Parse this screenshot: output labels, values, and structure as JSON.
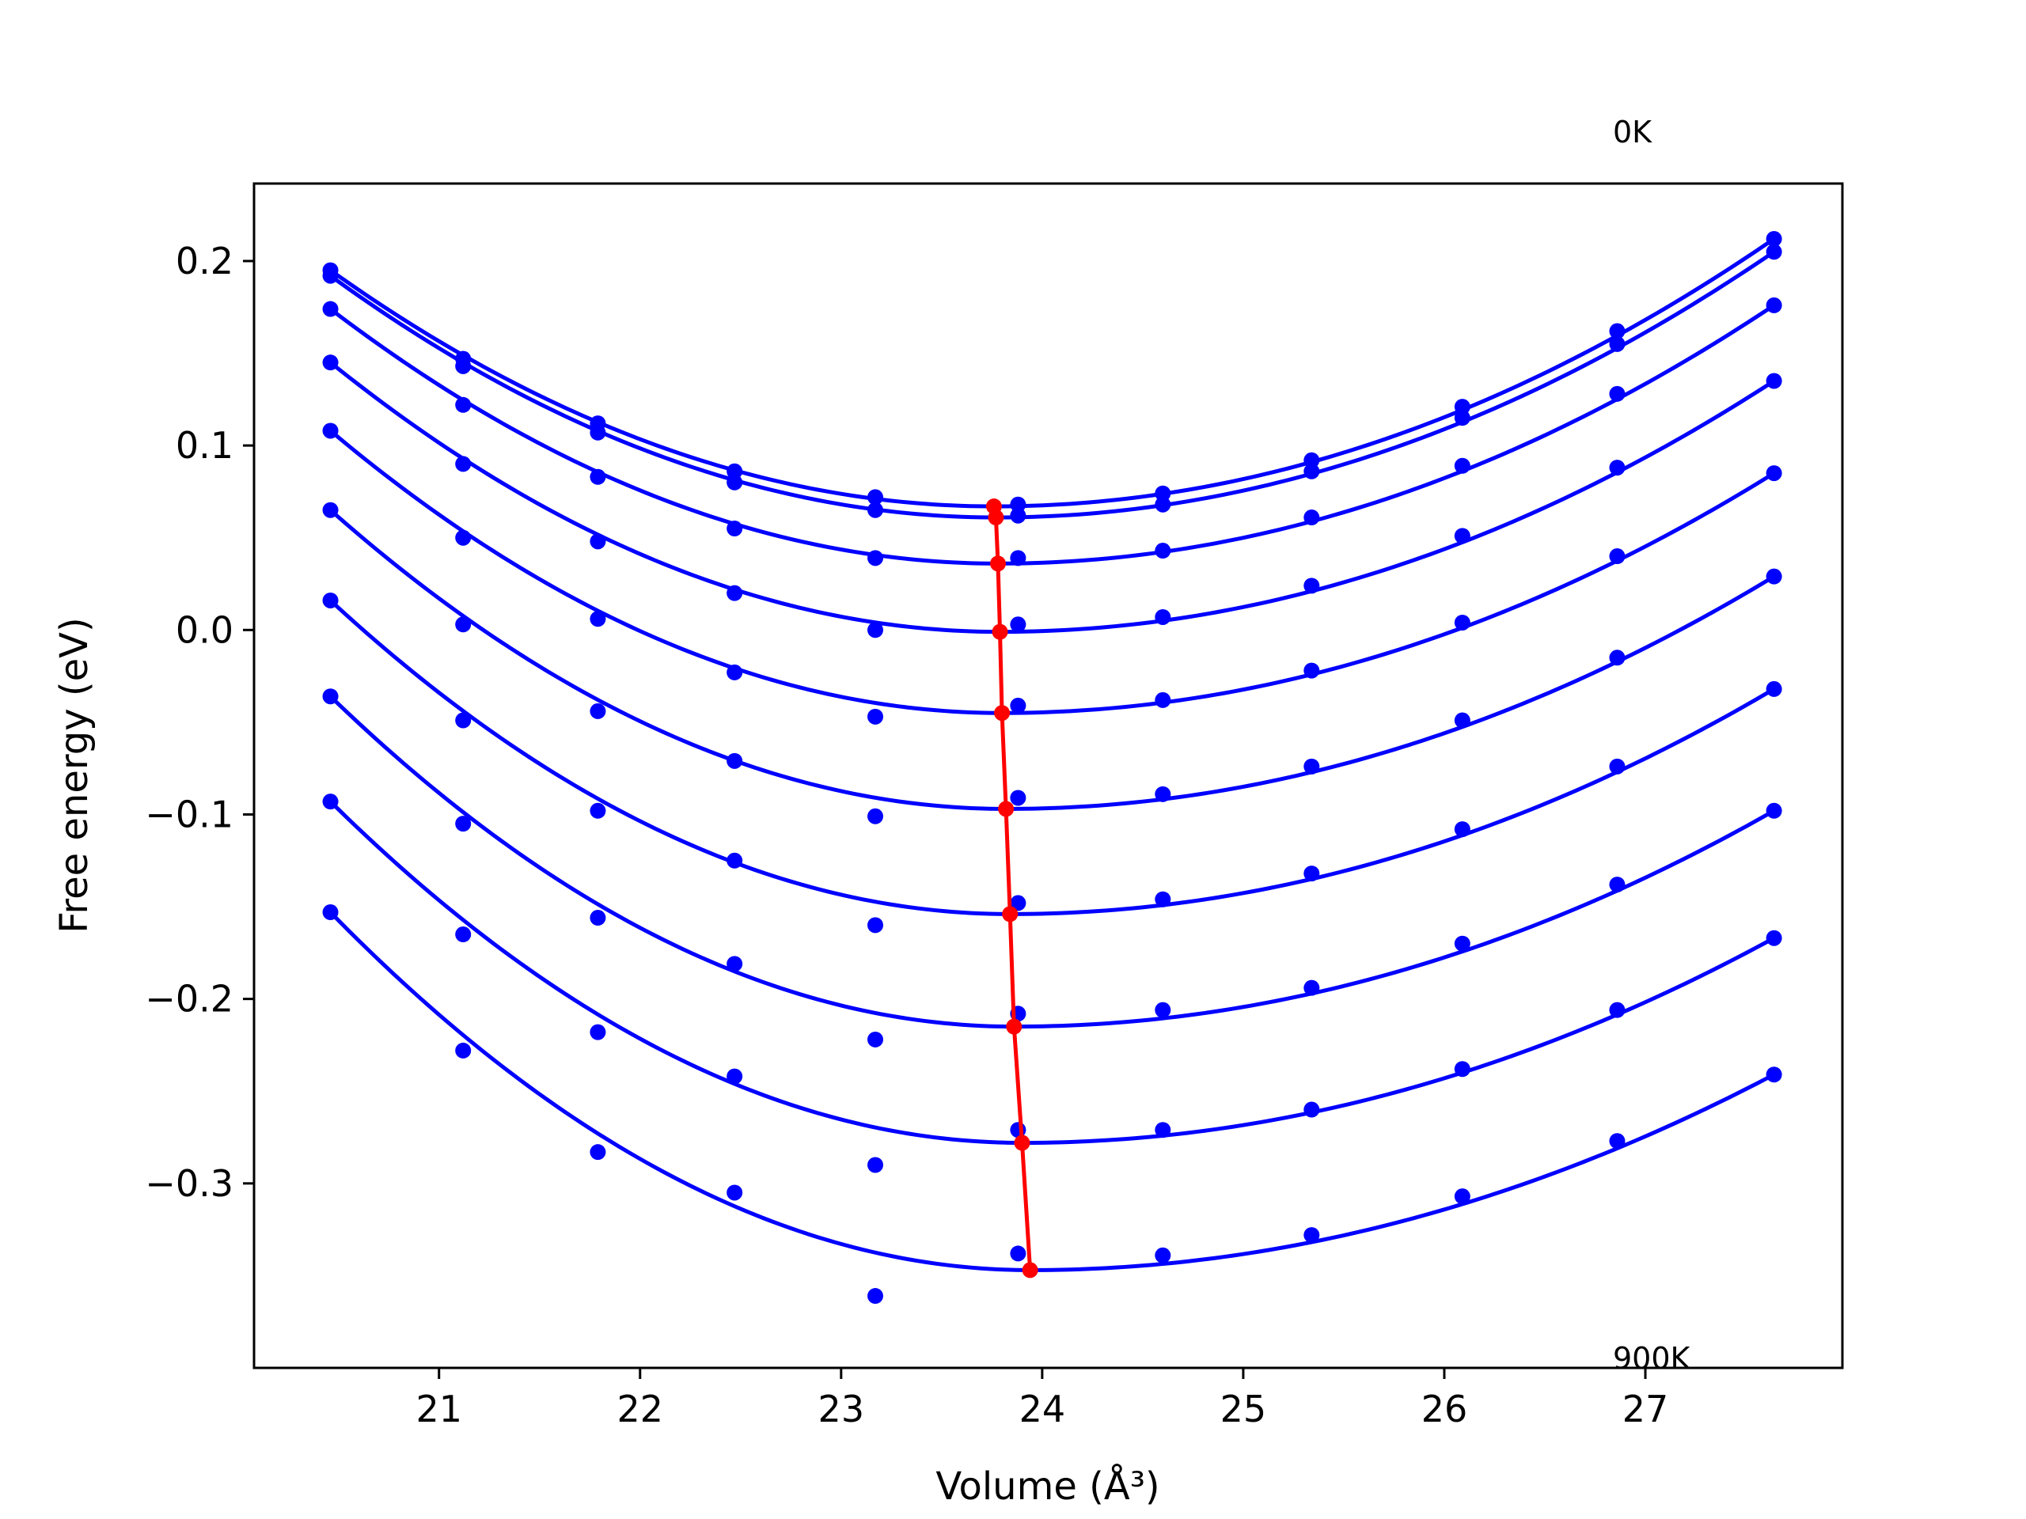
{
  "chart_data": {
    "type": "scatter",
    "xlabel": "Volume (Å³)",
    "ylabel": "Free energy (eV)",
    "xlim": [
      20.08,
      27.98
    ],
    "ylim": [
      -0.4,
      0.242
    ],
    "x_ticks": [
      21,
      22,
      23,
      24,
      25,
      26,
      27
    ],
    "x_tick_labels": [
      "21",
      "22",
      "23",
      "24",
      "25",
      "26",
      "27"
    ],
    "y_ticks": [
      0.2,
      0.1,
      0.0,
      -0.1,
      -0.2,
      -0.3
    ],
    "y_tick_labels": [
      "0.2",
      "0.1",
      "0.0",
      "−0.1",
      "−0.2",
      "−0.3"
    ],
    "grid": false,
    "legend": "none",
    "annotations": {
      "top": "0K",
      "bottom": "900K"
    },
    "colors": {
      "curves": "#0000ff",
      "minima": "#ff0000"
    },
    "volumes": [
      20.46,
      21.12,
      21.79,
      22.47,
      23.17,
      23.88,
      24.6,
      25.34,
      26.09,
      26.86,
      27.64
    ],
    "series": [
      {
        "values": [
          0.195,
          0.147,
          0.112,
          0.086,
          0.072,
          0.068,
          0.074,
          0.092,
          0.121,
          0.162,
          0.212
        ],
        "min_x": 23.76,
        "min_y": 0.067
      },
      {
        "values": [
          0.192,
          0.143,
          0.107,
          0.08,
          0.065,
          0.062,
          0.068,
          0.086,
          0.115,
          0.155,
          0.205
        ],
        "min_x": 23.77,
        "min_y": 0.061
      },
      {
        "values": [
          0.174,
          0.122,
          0.083,
          0.055,
          0.039,
          0.039,
          0.043,
          0.061,
          0.089,
          0.128,
          0.176
        ],
        "min_x": 23.78,
        "min_y": 0.036
      },
      {
        "values": [
          0.145,
          0.09,
          0.048,
          0.02,
          0.0,
          0.003,
          0.007,
          0.024,
          0.051,
          0.088,
          0.135
        ],
        "min_x": 23.79,
        "min_y": -0.001
      },
      {
        "values": [
          0.108,
          0.05,
          0.006,
          -0.023,
          -0.047,
          -0.041,
          -0.038,
          -0.022,
          0.004,
          0.04,
          0.085
        ],
        "min_x": 23.8,
        "min_y": -0.045
      },
      {
        "values": [
          0.065,
          0.003,
          -0.044,
          -0.071,
          -0.101,
          -0.091,
          -0.089,
          -0.074,
          -0.049,
          -0.015,
          0.029
        ],
        "min_x": 23.82,
        "min_y": -0.097
      },
      {
        "values": [
          0.016,
          -0.049,
          -0.098,
          -0.125,
          -0.16,
          -0.148,
          -0.146,
          -0.132,
          -0.108,
          -0.074,
          -0.032
        ],
        "min_x": 23.84,
        "min_y": -0.154
      },
      {
        "values": [
          -0.036,
          -0.105,
          -0.156,
          -0.181,
          -0.222,
          -0.208,
          -0.206,
          -0.194,
          -0.17,
          -0.138,
          -0.098
        ],
        "min_x": 23.86,
        "min_y": -0.215
      },
      {
        "values": [
          -0.093,
          -0.165,
          -0.218,
          -0.242,
          -0.29,
          -0.271,
          -0.271,
          -0.26,
          -0.238,
          -0.206,
          -0.167
        ],
        "min_x": 23.9,
        "min_y": -0.278
      },
      {
        "values": [
          -0.153,
          -0.228,
          -0.283,
          -0.305,
          -0.361,
          -0.338,
          -0.339,
          -0.328,
          -0.307,
          -0.277,
          -0.241
        ],
        "min_x": 23.94,
        "min_y": -0.347
      }
    ]
  }
}
